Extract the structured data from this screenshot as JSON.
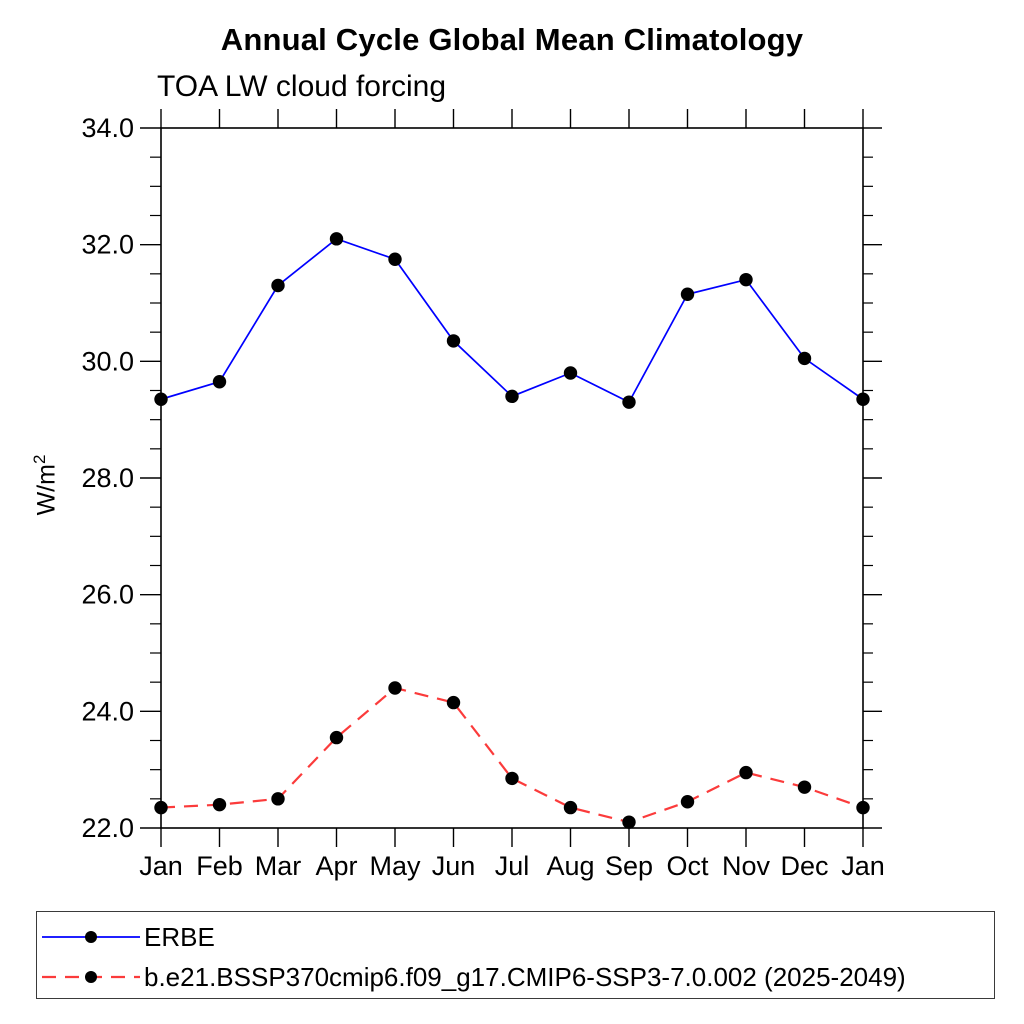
{
  "page": {
    "background": "#ffffff"
  },
  "chart_data": {
    "type": "line",
    "title": "Annual Cycle Global Mean Climatology",
    "subtitle": "TOA LW cloud forcing",
    "ylabel": {
      "base": "W/m",
      "sup": "2"
    },
    "xlabel": "",
    "categories": [
      "Jan",
      "Feb",
      "Mar",
      "Apr",
      "May",
      "Jun",
      "Jul",
      "Aug",
      "Sep",
      "Oct",
      "Nov",
      "Dec",
      "Jan"
    ],
    "ylim": [
      22.0,
      34.0
    ],
    "y_major_ticks": [
      22.0,
      24.0,
      26.0,
      28.0,
      30.0,
      32.0,
      34.0
    ],
    "y_major_tick_labels": [
      "22.0",
      "24.0",
      "26.0",
      "28.0",
      "30.0",
      "32.0",
      "34.0"
    ],
    "y_minor_step": 0.5,
    "grid": false,
    "legend_position": "bottom-outside",
    "axis_color": "#000000",
    "marker_color": "#000000",
    "marker_shape": "filled-circle",
    "series": [
      {
        "name": "ERBE",
        "color": "#0000ff",
        "line_style": "solid",
        "values": [
          29.35,
          29.65,
          31.3,
          32.1,
          31.75,
          30.35,
          29.4,
          29.8,
          29.3,
          31.15,
          31.4,
          30.05,
          29.35
        ]
      },
      {
        "name": "b.e21.BSSP370cmip6.f09_g17.CMIP6-SSP3-7.0.002 (2025-2049)",
        "color": "#fb3b3b",
        "line_style": "dashed",
        "values": [
          22.35,
          22.4,
          22.5,
          23.55,
          24.4,
          24.15,
          22.85,
          22.35,
          22.1,
          22.45,
          22.95,
          22.7,
          22.35
        ]
      }
    ]
  }
}
